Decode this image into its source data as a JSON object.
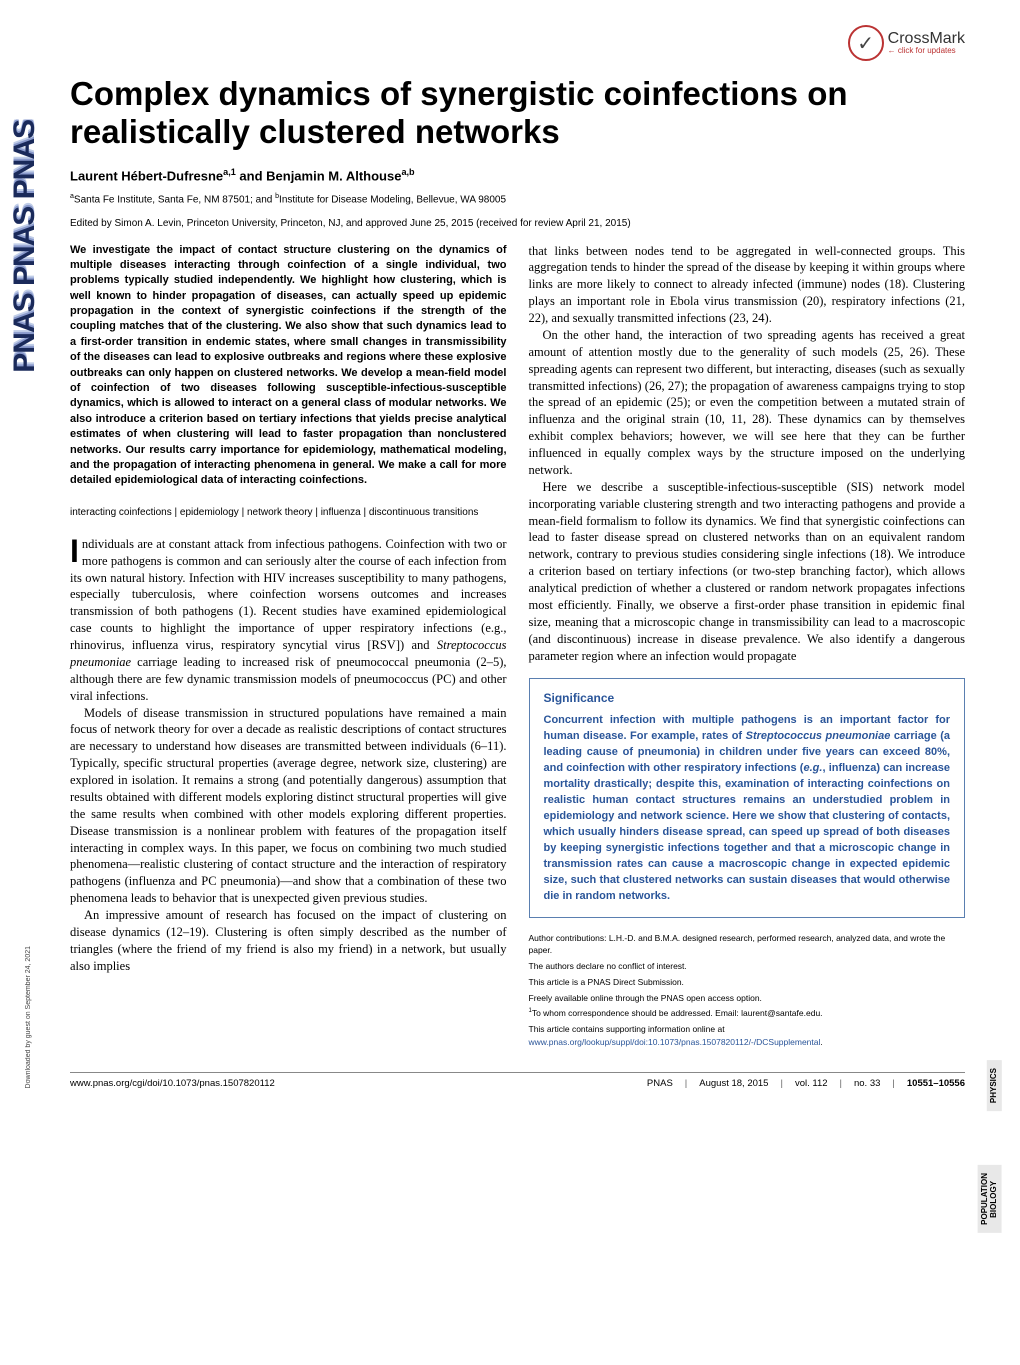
{
  "crossmark": {
    "label": "CrossMark",
    "sub": "← click for updates"
  },
  "title": "Complex dynamics of synergistic coinfections on realistically clustered networks",
  "authors": "Laurent Hébert-Dufresne",
  "author_sup1": "a,1",
  "author_and": " and Benjamin M. Althouse",
  "author_sup2": "a,b",
  "affil_a_sup": "a",
  "affil_a": "Santa Fe Institute, Santa Fe, NM 87501; and ",
  "affil_b_sup": "b",
  "affil_b": "Institute for Disease Modeling, Bellevue, WA 98005",
  "edited": "Edited by Simon A. Levin, Princeton University, Princeton, NJ, and approved June 25, 2015 (received for review April 21, 2015)",
  "abstract": "We investigate the impact of contact structure clustering on the dynamics of multiple diseases interacting through coinfection of a single individual, two problems typically studied independently. We highlight how clustering, which is well known to hinder propagation of diseases, can actually speed up epidemic propagation in the context of synergistic coinfections if the strength of the coupling matches that of the clustering. We also show that such dynamics lead to a first-order transition in endemic states, where small changes in transmissibility of the diseases can lead to explosive outbreaks and regions where these explosive outbreaks can only happen on clustered networks. We develop a mean-field model of coinfection of two diseases following susceptible-infectious-susceptible dynamics, which is allowed to interact on a general class of modular networks. We also introduce a criterion based on tertiary infections that yields precise analytical estimates of when clustering will lead to faster propagation than nonclustered networks. Our results carry importance for epidemiology, mathematical modeling, and the propagation of interacting phenomena in general. We make a call for more detailed epidemiological data of interacting coinfections.",
  "keywords": "interacting coinfections | epidemiology | network theory | influenza | discontinuous transitions",
  "body_p1a": "Individuals are at constant attack from infectious pathogens. Coinfection with two or more pathogens is common and can seriously alter the course of each infection from its own natural history. Infection with HIV increases susceptibility to many pathogens, especially tuberculosis, where coinfection worsens outcomes and increases transmission of both pathogens (1). Recent studies have examined epidemiological case counts to highlight the importance of upper respiratory infections (e.g., rhinovirus, influenza virus, respiratory syncytial virus [RSV]) and ",
  "body_p1b": " carriage leading to increased risk of pneumococcal pneumonia (2–5), although there are few dynamic transmission models of pneumococcus (PC) and other viral infections.",
  "body_p1_ital": "Streptococcus pneumoniae",
  "body_p2": "Models of disease transmission in structured populations have remained a main focus of network theory for over a decade as realistic descriptions of contact structures are necessary to understand how diseases are transmitted between individuals (6–11). Typically, specific structural properties (average degree, network size, clustering) are explored in isolation. It remains a strong (and potentially dangerous) assumption that results obtained with different models exploring distinct structural properties will give the same results when combined with other models exploring different properties. Disease transmission is a nonlinear problem with features of the propagation itself interacting in complex ways. In this paper, we focus on combining two much studied phenomena—realistic clustering of contact structure and the interaction of respiratory pathogens (influenza and PC pneumonia)—and show that a combination of these two phenomena leads to behavior that is unexpected given previous studies.",
  "body_p3": "An impressive amount of research has focused on the impact of clustering on disease dynamics (12–19). Clustering is often simply described as the number of triangles (where the friend of my friend is also my friend) in a network, but usually also implies",
  "body_r1": "that links between nodes tend to be aggregated in well-connected groups. This aggregation tends to hinder the spread of the disease by keeping it within groups where links are more likely to connect to already infected (immune) nodes (18). Clustering plays an important role in Ebola virus transmission (20), respiratory infections (21, 22), and sexually transmitted infections (23, 24).",
  "body_r2": "On the other hand, the interaction of two spreading agents has received a great amount of attention mostly due to the generality of such models (25, 26). These spreading agents can represent two different, but interacting, diseases (such as sexually transmitted infections) (26, 27); the propagation of awareness campaigns trying to stop the spread of an epidemic (25); or even the competition between a mutated strain of influenza and the original strain (10, 11, 28). These dynamics can by themselves exhibit complex behaviors; however, we will see here that they can be further influenced in equally complex ways by the structure imposed on the underlying network.",
  "body_r3": "Here we describe a susceptible-infectious-susceptible (SIS) network model incorporating variable clustering strength and two interacting pathogens and provide a mean-field formalism to follow its dynamics. We find that synergistic coinfections can lead to faster disease spread on clustered networks than on an equivalent random network, contrary to previous studies considering single infections (18). We introduce a criterion based on tertiary infections (or two-step branching factor), which allows analytical prediction of whether a clustered or random network propagates infections most efficiently. Finally, we observe a first-order phase transition in epidemic final size, meaning that a microscopic change in transmissibility can lead to a macroscopic (and discontinuous) increase in disease prevalence. We also identify a dangerous parameter region where an infection would propagate",
  "signif_title": "Significance",
  "signif_a": "Concurrent infection with multiple pathogens is an important factor for human disease. For example, rates of ",
  "signif_ital": "Streptococcus pneumoniae",
  "signif_b": " carriage (a leading cause of pneumonia) in children under five years can exceed 80%, and coinfection with other respiratory infections (",
  "signif_eg": "e.g.",
  "signif_c": ", influenza) can increase mortality drastically; despite this, examination of interacting coinfections on realistic human contact structures remains an understudied problem in epidemiology and network science. Here we show that clustering of contacts, which usually hinders disease spread, can speed up spread of both diseases by keeping synergistic infections together and that a microscopic change in transmission rates can cause a macroscopic change in expected epidemic size, such that clustered networks can sustain diseases that would otherwise die in random networks.",
  "foot_contrib": "Author contributions: L.H.-D. and B.M.A. designed research, performed research, analyzed data, and wrote the paper.",
  "foot_conflict": "The authors declare no conflict of interest.",
  "foot_direct": "This article is a PNAS Direct Submission.",
  "foot_open": "Freely available online through the PNAS open access option.",
  "foot_corr_sup": "1",
  "foot_corr": "To whom correspondence should be addressed. Email: laurent@santafe.edu.",
  "foot_supp_a": "This article contains supporting information online at ",
  "foot_supp_link": "www.pnas.org/lookup/suppl/doi:10.1073/pnas.1507820112/-/DCSupplemental",
  "foot_supp_b": ".",
  "pf_doi": "www.pnas.org/cgi/doi/10.1073/pnas.1507820112",
  "pf_pnas": "PNAS",
  "pf_date": "August 18, 2015",
  "pf_vol": "vol. 112",
  "pf_no": "no. 33",
  "pf_pages": "10551–10556",
  "side_physics": "PHYSICS",
  "side_popbio_a": "POPULATION",
  "side_popbio_b": "BIOLOGY",
  "pnas_logo": "PNAS  PNAS  PNAS",
  "download": "Downloaded by guest on September 24, 2021"
}
